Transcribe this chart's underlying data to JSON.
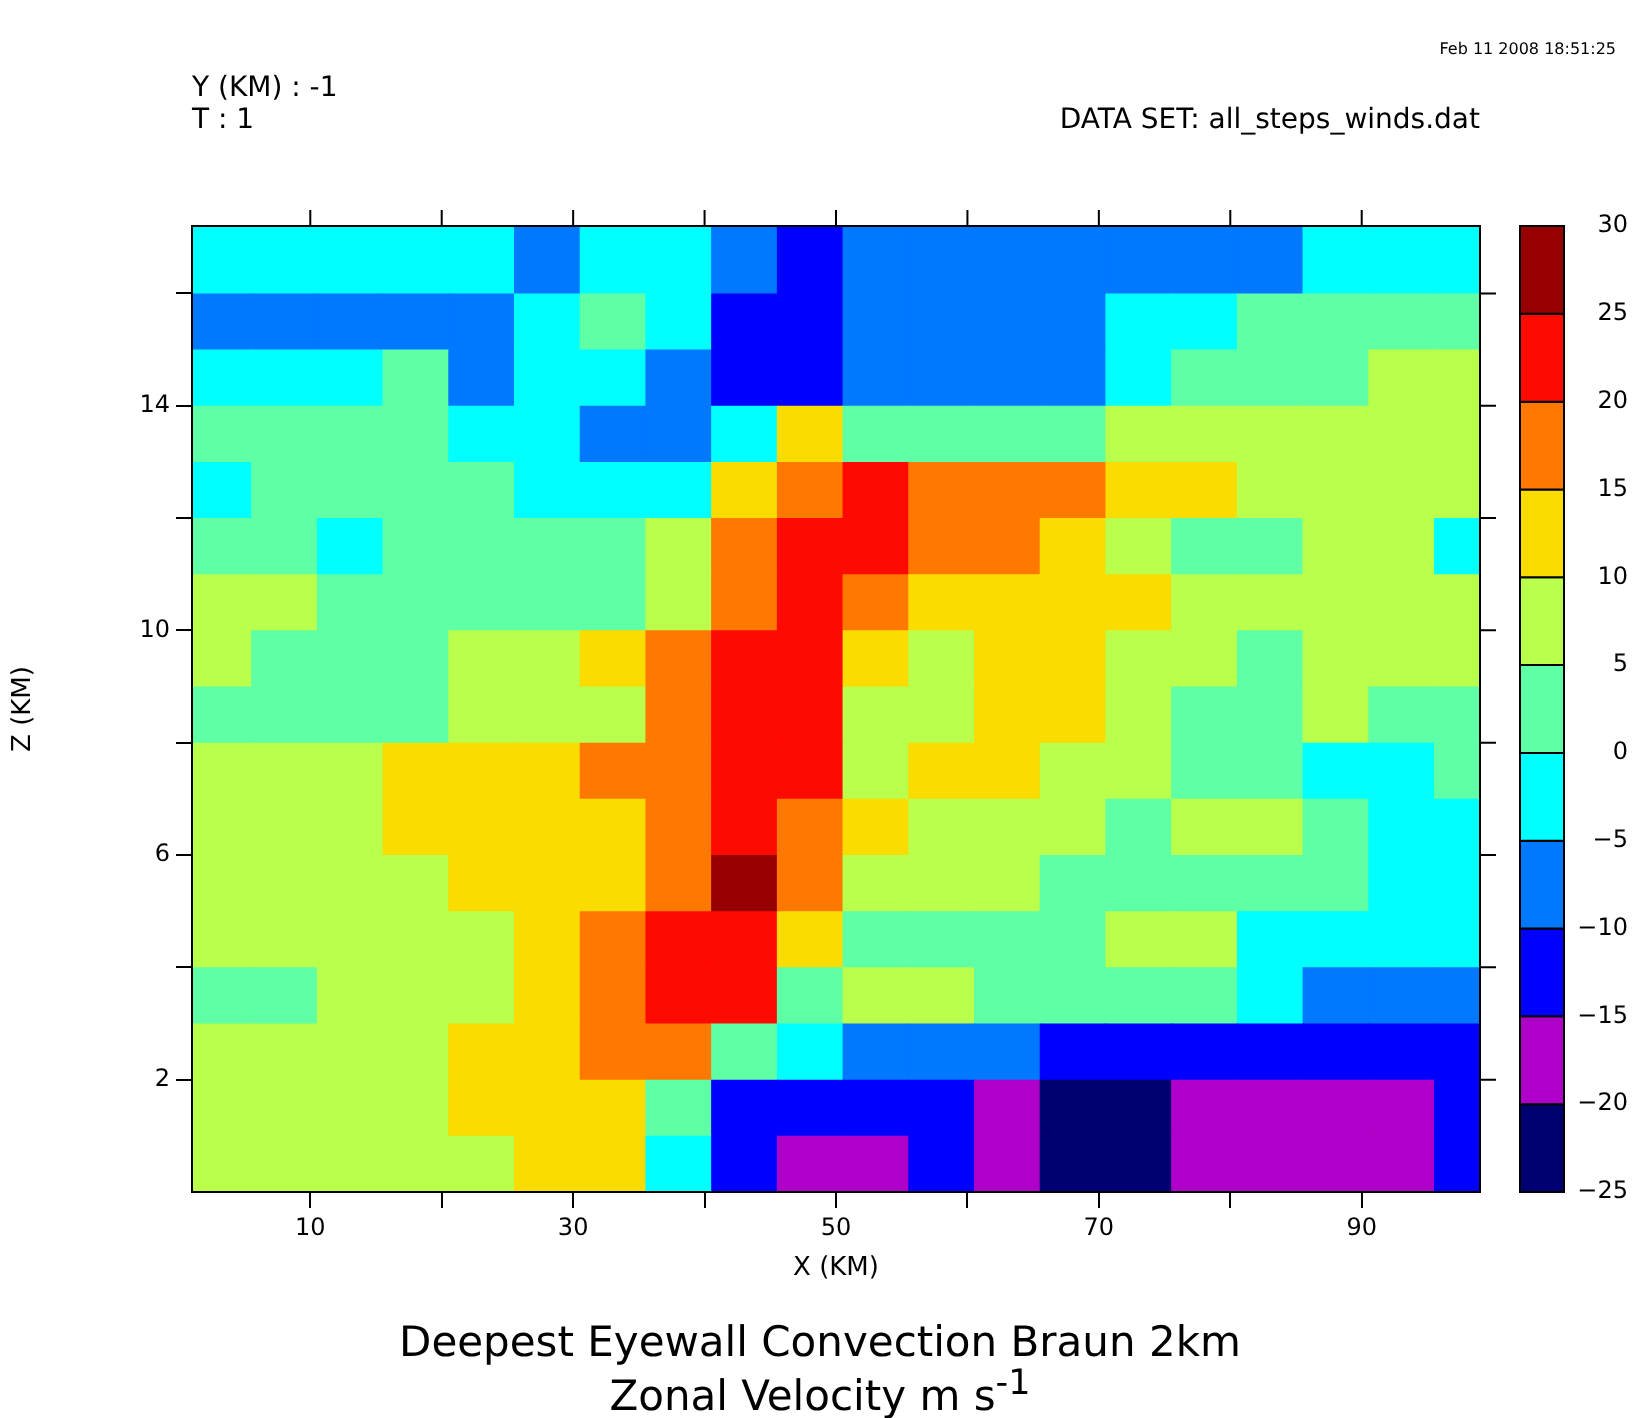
{
  "chart_data": {
    "type": "heatmap",
    "title": "Deepest Eyewall Convection Braun 2km",
    "subtitle": "Zonal Velocity m s$^{-1}$",
    "xlabel": "X (KM)",
    "ylabel": "Z (KM)",
    "annotations": [
      "Y (KM) : -1",
      "T : 1",
      "DATA SET: all_steps_winds.dat",
      "Feb 11 2008 18:51:25"
    ],
    "x": [
      3,
      8,
      13,
      18,
      23,
      28,
      33,
      38,
      43,
      48,
      53,
      58,
      63,
      68,
      73,
      78,
      83,
      88,
      93,
      98
    ],
    "y": [
      16.5,
      15.5,
      14.5,
      13.5,
      12.5,
      11.5,
      10.5,
      9.5,
      8.5,
      7.5,
      6.5,
      5.5,
      4.5,
      3.5,
      2.5,
      1.5,
      0.5
    ],
    "xlim": [
      1,
      99
    ],
    "ylim": [
      0,
      17.2
    ],
    "xticks": [
      10,
      {
        "value": 20,
        "label": null
      },
      30,
      {
        "value": 40,
        "label": null
      },
      50,
      {
        "value": 60,
        "label": null
      },
      70,
      {
        "value": 80,
        "label": null
      },
      90
    ],
    "yticks": [
      2,
      {
        "value": 4,
        "label": null
      },
      6,
      {
        "value": 8,
        "label": null
      },
      10,
      {
        "value": 12,
        "label": null
      },
      14,
      {
        "value": 16,
        "label": null
      }
    ],
    "clim": [
      -25,
      30
    ],
    "cticks": [
      -25,
      -20,
      -15,
      -10,
      -5,
      0,
      5,
      10,
      15,
      20,
      25,
      30
    ],
    "colors": [
      "#000070",
      "#ae00c8",
      "#0000ff",
      "#0078ff",
      "#00ffff",
      "#5fffa5",
      "#b9ff4b",
      "#fadc00",
      "#ff7800",
      "#ff0a00",
      "#960000"
    ],
    "cells": [
      [
        -3,
        -3,
        -3,
        -3,
        -3,
        -8,
        -3,
        -3,
        -8,
        -13,
        -8,
        -8,
        -8,
        -8,
        -8,
        -8,
        -8,
        -3,
        -3,
        -3
      ],
      [
        -8,
        -8,
        -8,
        -8,
        -8,
        -3,
        2,
        -3,
        -13,
        -13,
        -8,
        -8,
        -8,
        -8,
        -3,
        -3,
        2,
        2,
        2,
        2
      ],
      [
        -3,
        -3,
        -3,
        2,
        -8,
        -3,
        -3,
        -8,
        -13,
        -13,
        -8,
        -8,
        -8,
        -8,
        -3,
        2,
        2,
        2,
        7,
        7
      ],
      [
        2,
        2,
        2,
        2,
        -3,
        -3,
        -8,
        -8,
        -3,
        12,
        2,
        2,
        2,
        2,
        7,
        7,
        7,
        7,
        7,
        7
      ],
      [
        -3,
        2,
        2,
        2,
        2,
        -3,
        -3,
        -3,
        12,
        17,
        22,
        17,
        17,
        17,
        12,
        12,
        7,
        7,
        7,
        7
      ],
      [
        2,
        2,
        -3,
        2,
        2,
        2,
        2,
        7,
        17,
        22,
        22,
        17,
        17,
        12,
        7,
        2,
        2,
        7,
        7,
        -3
      ],
      [
        7,
        7,
        2,
        2,
        2,
        2,
        2,
        7,
        17,
        22,
        17,
        12,
        12,
        12,
        12,
        7,
        7,
        7,
        7,
        7
      ],
      [
        7,
        2,
        2,
        2,
        7,
        7,
        12,
        17,
        22,
        22,
        12,
        7,
        12,
        12,
        7,
        7,
        2,
        7,
        7,
        7
      ],
      [
        2,
        2,
        2,
        2,
        7,
        7,
        7,
        17,
        22,
        22,
        7,
        7,
        12,
        12,
        7,
        2,
        2,
        7,
        2,
        2
      ],
      [
        7,
        7,
        7,
        12,
        12,
        12,
        17,
        17,
        22,
        22,
        7,
        12,
        12,
        7,
        7,
        2,
        2,
        -3,
        -3,
        2
      ],
      [
        7,
        7,
        7,
        12,
        12,
        12,
        12,
        17,
        22,
        17,
        12,
        7,
        7,
        7,
        2,
        7,
        7,
        2,
        -3,
        -3
      ],
      [
        7,
        7,
        7,
        7,
        12,
        12,
        12,
        17,
        27,
        17,
        7,
        7,
        7,
        2,
        2,
        2,
        2,
        2,
        -3,
        -3
      ],
      [
        7,
        7,
        7,
        7,
        7,
        12,
        17,
        22,
        22,
        12,
        2,
        2,
        2,
        2,
        7,
        7,
        -3,
        -3,
        -3,
        -3
      ],
      [
        2,
        2,
        7,
        7,
        7,
        12,
        17,
        22,
        22,
        2,
        7,
        7,
        2,
        2,
        2,
        2,
        -3,
        -8,
        -8,
        -8
      ],
      [
        7,
        7,
        7,
        7,
        12,
        12,
        17,
        17,
        2,
        -3,
        -8,
        -8,
        -8,
        -13,
        -13,
        -13,
        -13,
        -13,
        -13,
        -13
      ],
      [
        7,
        7,
        7,
        7,
        12,
        12,
        12,
        2,
        -13,
        -13,
        -13,
        -13,
        -18,
        -23,
        -23,
        -18,
        -18,
        -18,
        -18,
        -13
      ],
      [
        7,
        7,
        7,
        7,
        7,
        12,
        12,
        -3,
        -13,
        -18,
        -18,
        -13,
        -18,
        -23,
        -23,
        -18,
        -18,
        -18,
        -18,
        -13
      ]
    ]
  }
}
